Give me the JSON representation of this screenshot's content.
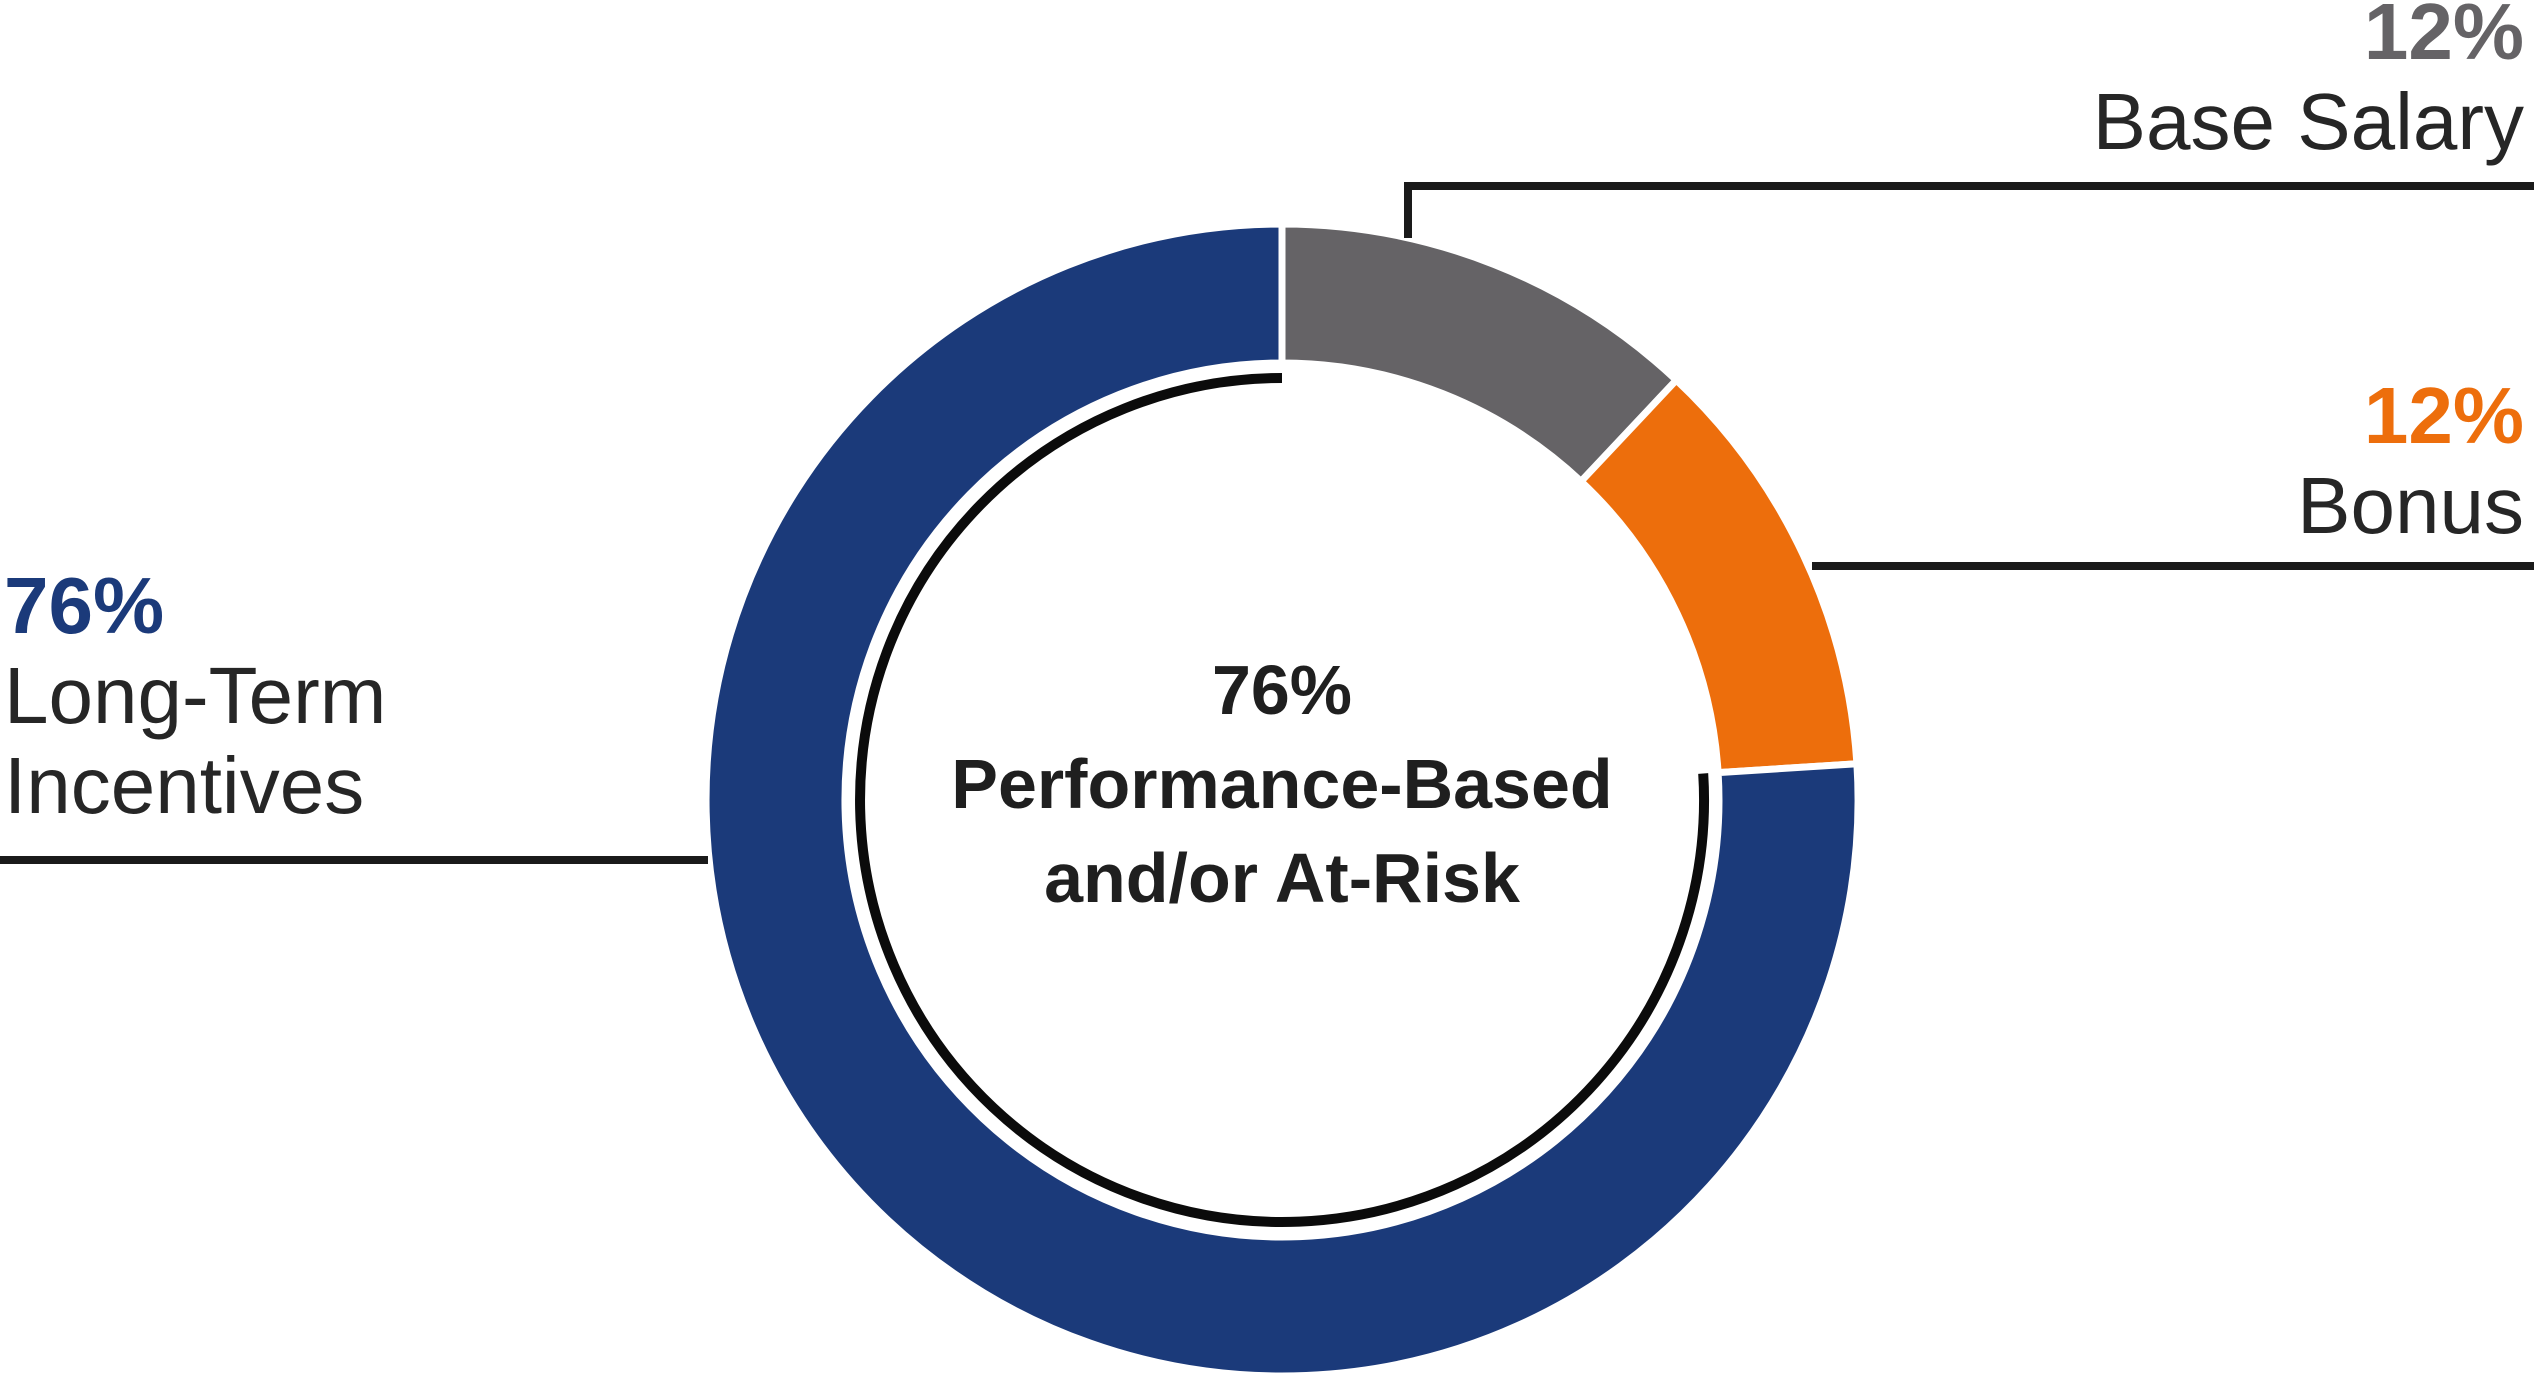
{
  "chart_data": {
    "type": "pie",
    "subtype": "donut",
    "title": "",
    "legend_position": "callouts",
    "categories": [
      "Base Salary",
      "Bonus",
      "Long-Term Incentives"
    ],
    "values": [
      12,
      12,
      76
    ],
    "unit": "%",
    "order_clockwise_from_top": [
      "Base Salary",
      "Bonus",
      "Long-Term Incentives"
    ],
    "segments": [
      {
        "label": "Base Salary",
        "value_pct": 12,
        "color": "#656366"
      },
      {
        "label": "Bonus",
        "value_pct": 12,
        "color": "#ED6E0C"
      },
      {
        "label": "Long-Term Incentives",
        "value_pct": 76,
        "color": "#1B3A7A"
      }
    ],
    "center_label": {
      "line1": "76%",
      "line2": "Performance-Based",
      "line3": "and/or At-Risk"
    },
    "inner_arc": {
      "covers_pct": 76,
      "color": "#0B0B0B",
      "note": "black arc inside donut hole spanning the Long-Term Incentives segment"
    },
    "leader_line_color": "#1A1A1A",
    "text_colors": {
      "callout_name": "#262626",
      "center_text": "#1F1F1F"
    }
  },
  "callouts": {
    "base_salary": {
      "pct": "12%",
      "name": "Base Salary"
    },
    "bonus": {
      "pct": "12%",
      "name": "Bonus"
    },
    "long_term_incentives": {
      "pct": "76%",
      "name_line1": "Long-Term",
      "name_line2": "Incentives"
    }
  }
}
